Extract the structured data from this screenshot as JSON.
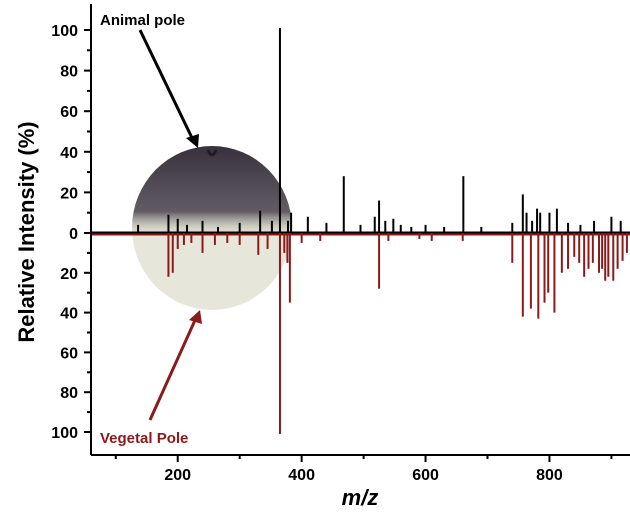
{
  "chart_data": {
    "type": "line",
    "description_free": true,
    "xlabel": "m/z",
    "ylabel": "Relative Intensity (%)",
    "xlim": [
      60,
      930
    ],
    "xticks": [
      200,
      400,
      600,
      800
    ],
    "ylim_top": [
      0,
      105
    ],
    "ylim_bottom": [
      0,
      105
    ],
    "yticks": [
      0,
      20,
      40,
      60,
      80,
      100
    ],
    "grid": false,
    "annotations": {
      "animal": "Animal pole",
      "vegetal": "Vegetal Pole"
    },
    "colors": {
      "animal": "#000000",
      "vegetal": "#8b1a1a",
      "egg_top": "#3a3340",
      "egg_bottom": "#e8e9dc"
    },
    "series": [
      {
        "name": "Animal pole",
        "direction": "up",
        "peaks": [
          [
            136,
            4
          ],
          [
            185,
            9
          ],
          [
            200,
            7
          ],
          [
            215,
            4
          ],
          [
            240,
            6
          ],
          [
            265,
            3
          ],
          [
            300,
            5
          ],
          [
            333,
            11
          ],
          [
            352,
            6
          ],
          [
            365,
            101
          ],
          [
            378,
            6
          ],
          [
            383,
            10
          ],
          [
            410,
            8
          ],
          [
            440,
            5
          ],
          [
            468,
            28
          ],
          [
            495,
            4
          ],
          [
            518,
            8
          ],
          [
            525,
            16
          ],
          [
            535,
            6
          ],
          [
            548,
            7
          ],
          [
            560,
            4
          ],
          [
            577,
            3
          ],
          [
            600,
            4
          ],
          [
            630,
            3
          ],
          [
            661,
            28
          ],
          [
            690,
            3
          ],
          [
            740,
            5
          ],
          [
            757,
            19
          ],
          [
            763,
            10
          ],
          [
            772,
            6
          ],
          [
            780,
            12
          ],
          [
            785,
            10
          ],
          [
            800,
            10
          ],
          [
            812,
            12
          ],
          [
            830,
            5
          ],
          [
            850,
            4
          ],
          [
            872,
            6
          ],
          [
            900,
            8
          ],
          [
            915,
            6
          ]
        ]
      },
      {
        "name": "Vegetal Pole",
        "direction": "down",
        "peaks": [
          [
            185,
            22
          ],
          [
            192,
            20
          ],
          [
            200,
            8
          ],
          [
            210,
            6
          ],
          [
            222,
            5
          ],
          [
            240,
            10
          ],
          [
            260,
            6
          ],
          [
            280,
            5
          ],
          [
            300,
            6
          ],
          [
            330,
            11
          ],
          [
            345,
            8
          ],
          [
            365,
            101
          ],
          [
            372,
            10
          ],
          [
            377,
            15
          ],
          [
            381,
            35
          ],
          [
            400,
            5
          ],
          [
            430,
            4
          ],
          [
            525,
            28
          ],
          [
            540,
            4
          ],
          [
            590,
            3
          ],
          [
            610,
            4
          ],
          [
            660,
            4
          ],
          [
            740,
            15
          ],
          [
            757,
            42
          ],
          [
            770,
            38
          ],
          [
            782,
            43
          ],
          [
            792,
            35
          ],
          [
            798,
            30
          ],
          [
            808,
            40
          ],
          [
            820,
            20
          ],
          [
            830,
            18
          ],
          [
            840,
            12
          ],
          [
            848,
            15
          ],
          [
            856,
            22
          ],
          [
            863,
            18
          ],
          [
            870,
            15
          ],
          [
            880,
            20
          ],
          [
            885,
            18
          ],
          [
            890,
            24
          ],
          [
            895,
            22
          ],
          [
            903,
            24
          ],
          [
            910,
            18
          ],
          [
            918,
            14
          ],
          [
            925,
            10
          ]
        ]
      }
    ]
  }
}
